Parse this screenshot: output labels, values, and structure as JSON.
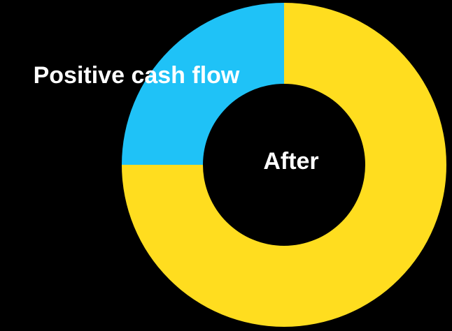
{
  "chart_data": {
    "type": "pie",
    "variant": "donut",
    "center_label": "After",
    "slices": [
      {
        "label": "Positive cash flow",
        "value": 25,
        "color": "#1fc2f7"
      },
      {
        "label": "",
        "value": 75,
        "color": "#ffdd1f"
      }
    ],
    "start_angle_deg": 270,
    "direction": "counterclockwise",
    "background": "#000000"
  }
}
